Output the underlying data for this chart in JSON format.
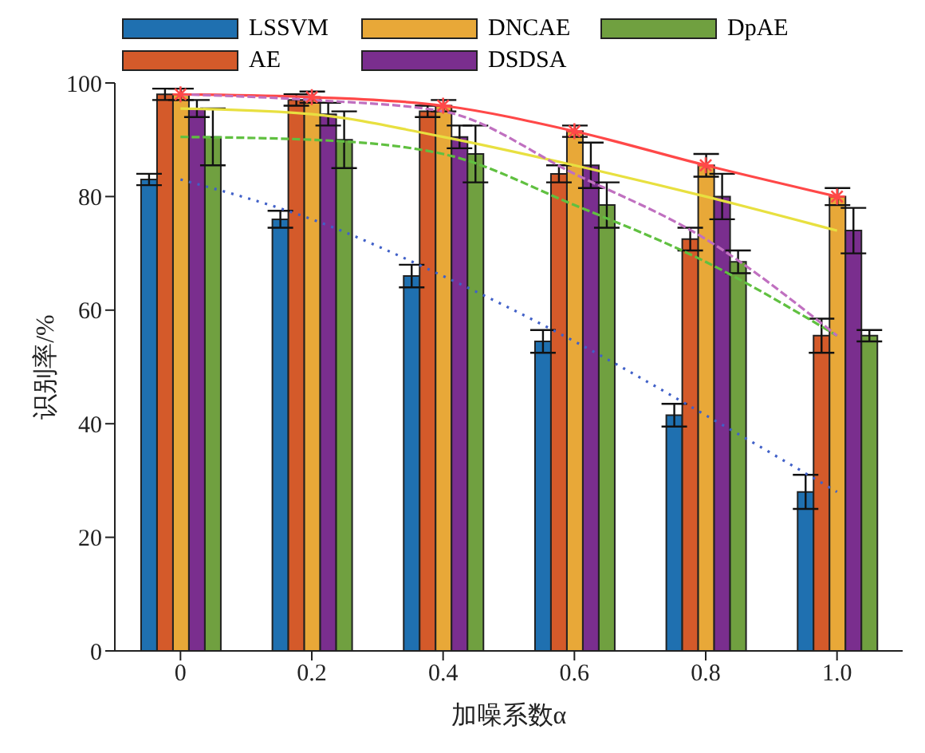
{
  "chart_data": {
    "type": "bar",
    "categories": [
      "0",
      "0.2",
      "0.4",
      "0.6",
      "0.8",
      "1.0"
    ],
    "xlabel": "加噪系数α",
    "ylabel": "识别率/%",
    "ylim": [
      0,
      100
    ],
    "yticks": [
      0,
      20,
      40,
      60,
      80,
      100
    ],
    "legend": "top",
    "grid": false,
    "series": [
      {
        "name": "LSSVM",
        "color": "#1f70b0",
        "values": [
          83,
          76,
          66,
          54.5,
          41.5,
          28
        ],
        "errors": [
          1,
          1.5,
          2,
          2,
          2,
          3
        ]
      },
      {
        "name": "AE",
        "color": "#d45a2a",
        "values": [
          98,
          97,
          95,
          84,
          72.5,
          55.5
        ],
        "errors": [
          1,
          1,
          1,
          1.5,
          2,
          3
        ]
      },
      {
        "name": "DNCAE",
        "color": "#e8a838",
        "values": [
          98,
          97.5,
          96,
          91.5,
          85.5,
          80
        ],
        "errors": [
          1,
          1,
          1,
          1,
          2,
          1.5
        ]
      },
      {
        "name": "DSDSA",
        "color": "#7a2e8e",
        "values": [
          95.5,
          94.5,
          90.5,
          85.5,
          80,
          74
        ],
        "errors": [
          1.5,
          2,
          2,
          4,
          4,
          4
        ]
      },
      {
        "name": "DpAE",
        "color": "#70a040",
        "values": [
          90.5,
          90,
          87.5,
          78.5,
          68.5,
          55.5
        ],
        "errors": [
          5,
          5,
          5,
          4,
          2,
          1
        ]
      },
      {
        "type": "line",
        "color": "#4060c8",
        "line_style": "dotted",
        "marker": "none",
        "values": [
          83,
          76,
          66,
          54.5,
          41.5,
          28
        ]
      },
      {
        "type": "line",
        "color": "#ff4848",
        "line_style": "solid",
        "marker": "cross",
        "values": [
          98,
          97.5,
          96,
          91.5,
          85.5,
          80
        ]
      },
      {
        "type": "line",
        "color": "#e8e040",
        "line_style": "solid",
        "marker": "none",
        "values": [
          95.5,
          94.5,
          90.5,
          85.5,
          80,
          74
        ]
      },
      {
        "type": "line",
        "color": "#60c040",
        "line_style": "dashed",
        "marker": "none",
        "values": [
          90.5,
          90,
          87.5,
          78.5,
          68.5,
          55.5
        ]
      },
      {
        "type": "line",
        "color": "#c070c0",
        "line_style": "dashed",
        "marker": "none",
        "values": [
          98,
          97,
          95,
          84,
          72.5,
          55.5
        ]
      }
    ]
  }
}
